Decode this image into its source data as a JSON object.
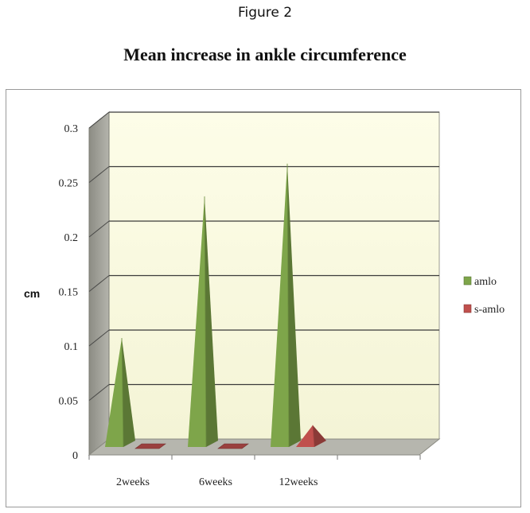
{
  "figure_label": "Figure 2",
  "chart_data": {
    "type": "bar",
    "title": "Mean increase in ankle circumference",
    "xlabel": "",
    "ylabel": "cm",
    "categories": [
      "2weeks",
      "6weeks",
      "12weeks"
    ],
    "series": [
      {
        "name": "amlo",
        "values": [
          0.1,
          0.23,
          0.26
        ],
        "color": "#7ea54a"
      },
      {
        "name": "s-amlo",
        "values": [
          0.0,
          0.0,
          0.02
        ],
        "color": "#c0504d"
      }
    ],
    "ylim": [
      0,
      0.3
    ],
    "yticks": [
      "0",
      "0.05",
      "0.1",
      "0.15",
      "0.2",
      "0.25",
      "0.3"
    ],
    "grid": true,
    "legend_position": "right",
    "style": "3d-pyramid"
  }
}
